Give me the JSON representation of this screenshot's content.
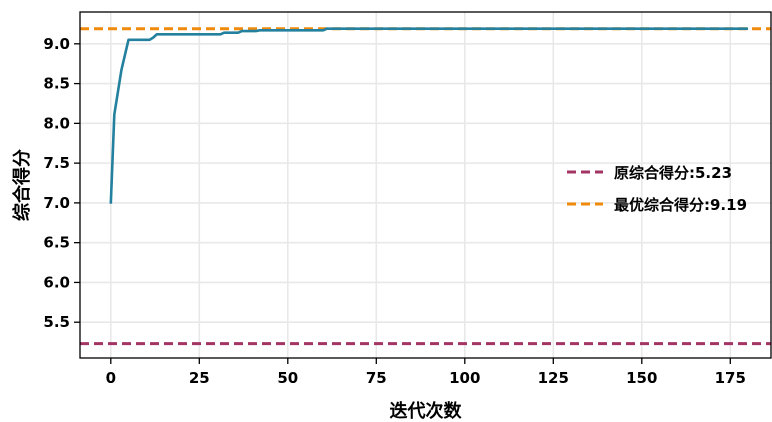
{
  "chart_data": {
    "type": "line",
    "title": "",
    "xlabel": "迭代次数",
    "ylabel": "综合得分",
    "xlim": [
      -8.7,
      186.5
    ],
    "ylim": [
      5.05,
      9.4
    ],
    "grid": true,
    "legend_position": "right",
    "x_ticks": [
      0,
      25,
      50,
      75,
      100,
      125,
      150,
      175
    ],
    "x_tick_labels": [
      "0",
      "25",
      "50",
      "75",
      "100",
      "125",
      "150",
      "175"
    ],
    "y_ticks": [
      5.5,
      6.0,
      6.5,
      7.0,
      7.5,
      8.0,
      8.5,
      9.0
    ],
    "y_tick_labels": [
      "5.5",
      "6.0",
      "6.5",
      "7.0",
      "7.5",
      "8.0",
      "8.5",
      "9.0"
    ],
    "series": [
      {
        "kind": "curve",
        "color": "#23809e",
        "x": [
          0,
          1,
          3,
          5,
          11,
          12,
          13,
          31,
          32,
          36,
          37,
          41,
          42,
          60,
          61,
          180
        ],
        "y": [
          6.99,
          8.11,
          8.67,
          9.05,
          9.05,
          9.08,
          9.12,
          9.12,
          9.14,
          9.14,
          9.16,
          9.16,
          9.17,
          9.17,
          9.19,
          9.19
        ]
      },
      {
        "kind": "hline",
        "name": "原综合得分:5.23",
        "value": 5.23,
        "color": "#a33564",
        "dashed": true
      },
      {
        "kind": "hline",
        "name": "最优综合得分:9.19",
        "value": 9.19,
        "color": "#ef8a0c",
        "dashed": true
      }
    ]
  }
}
